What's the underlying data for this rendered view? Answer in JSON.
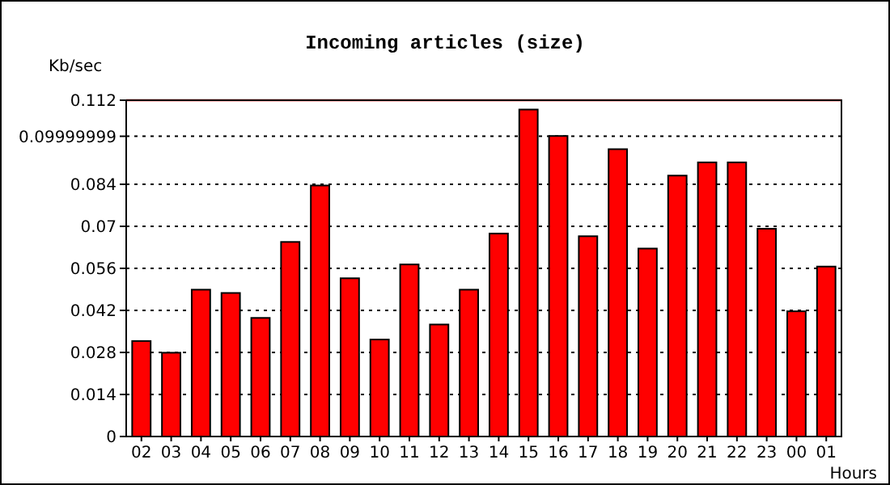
{
  "chart_data": {
    "type": "bar",
    "title": "Incoming articles (size)",
    "xlabel": "Hours",
    "ylabel": "Kb/sec",
    "categories": [
      "02",
      "03",
      "04",
      "05",
      "06",
      "07",
      "08",
      "09",
      "10",
      "11",
      "12",
      "13",
      "14",
      "15",
      "16",
      "17",
      "18",
      "19",
      "20",
      "21",
      "22",
      "23",
      "00",
      "01"
    ],
    "values": [
      0.0318,
      0.0279,
      0.0489,
      0.0478,
      0.0395,
      0.0648,
      0.0836,
      0.0527,
      0.0323,
      0.0573,
      0.0373,
      0.0489,
      0.0676,
      0.1089,
      0.1001,
      0.0667,
      0.0957,
      0.0626,
      0.0869,
      0.0913,
      0.0913,
      0.0692,
      0.0417,
      0.0566
    ],
    "color": "#ff0000",
    "ylim": [
      0,
      0.112
    ],
    "yticks": [
      0,
      0.014,
      0.028,
      0.042,
      0.056,
      0.07,
      0.084,
      0.09999999,
      0.112
    ],
    "grid": "y",
    "line_style": "dotted",
    "ref_lines": [
      {
        "axis": "y",
        "value": 0.112,
        "color": "#ff0000"
      }
    ]
  }
}
